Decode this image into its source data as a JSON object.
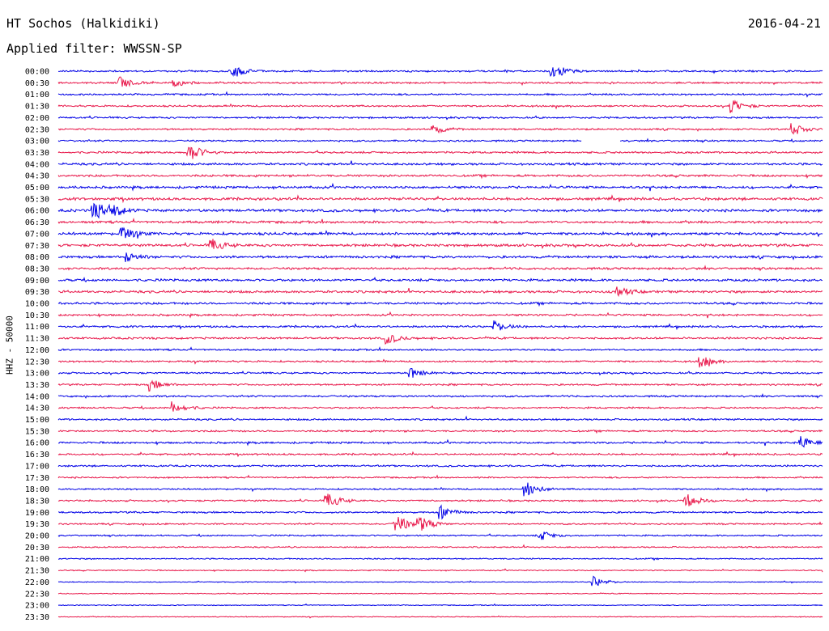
{
  "header": {
    "station": "HT Sochos (Halkidiki)",
    "date": "2016-04-21",
    "filter": "Applied filter: WWSSN-SP"
  },
  "chart_data": {
    "type": "line",
    "title": "HT Sochos (Halkidiki)",
    "subtitle": "Applied filter: WWSSN-SP",
    "ylabel": "HHZ - 50000",
    "xlabel": "",
    "row_labels": [
      "00:00",
      "00:30",
      "01:00",
      "01:30",
      "02:00",
      "02:30",
      "03:00",
      "03:30",
      "04:00",
      "04:30",
      "05:00",
      "05:30",
      "06:00",
      "06:30",
      "07:00",
      "07:30",
      "08:00",
      "08:30",
      "09:00",
      "09:30",
      "10:00",
      "10:30",
      "11:00",
      "11:30",
      "12:00",
      "12:30",
      "13:00",
      "13:30",
      "14:00",
      "14:30",
      "15:00",
      "15:30",
      "16:00",
      "16:30",
      "17:00",
      "17:30",
      "18:00",
      "18:30",
      "19:00",
      "19:30",
      "20:00",
      "20:30",
      "21:00",
      "21:30",
      "22:00",
      "22:30",
      "23:00",
      "23:30"
    ],
    "series_colors": [
      "#0000e6",
      "#e8174a"
    ],
    "row_amplitude": [
      0.4,
      0.4,
      0.4,
      0.4,
      0.4,
      0.4,
      0.4,
      0.45,
      0.5,
      0.5,
      0.55,
      0.6,
      0.6,
      0.55,
      0.6,
      0.6,
      0.55,
      0.5,
      0.55,
      0.55,
      0.5,
      0.45,
      0.45,
      0.45,
      0.4,
      0.4,
      0.4,
      0.4,
      0.4,
      0.4,
      0.4,
      0.4,
      0.45,
      0.4,
      0.4,
      0.35,
      0.35,
      0.4,
      0.4,
      0.35,
      0.35,
      0.3,
      0.3,
      0.25,
      0.2,
      0.2,
      0.2,
      0.2
    ],
    "events": [
      {
        "row": 0,
        "t": 0.225,
        "amp": 1.8
      },
      {
        "row": 0,
        "t": 0.645,
        "amp": 2.0
      },
      {
        "row": 1,
        "t": 0.08,
        "amp": 1.2
      },
      {
        "row": 1,
        "t": 0.15,
        "amp": 0.8
      },
      {
        "row": 3,
        "t": 0.88,
        "amp": 1.4
      },
      {
        "row": 5,
        "t": 0.49,
        "amp": 0.9
      },
      {
        "row": 5,
        "t": 0.96,
        "amp": 1.3
      },
      {
        "row": 7,
        "t": 0.17,
        "amp": 2.2
      },
      {
        "row": 12,
        "t": 0.045,
        "amp": 2.4
      },
      {
        "row": 12,
        "t": 0.065,
        "amp": 1.6
      },
      {
        "row": 14,
        "t": 0.082,
        "amp": 1.6
      },
      {
        "row": 15,
        "t": 0.2,
        "amp": 1.2
      },
      {
        "row": 16,
        "t": 0.09,
        "amp": 0.9
      },
      {
        "row": 19,
        "t": 0.73,
        "amp": 1.0
      },
      {
        "row": 22,
        "t": 0.57,
        "amp": 1.1
      },
      {
        "row": 23,
        "t": 0.43,
        "amp": 1.1
      },
      {
        "row": 25,
        "t": 0.84,
        "amp": 1.2
      },
      {
        "row": 26,
        "t": 0.46,
        "amp": 1.0
      },
      {
        "row": 27,
        "t": 0.12,
        "amp": 1.1
      },
      {
        "row": 29,
        "t": 0.15,
        "amp": 1.1
      },
      {
        "row": 32,
        "t": 0.97,
        "amp": 1.3
      },
      {
        "row": 36,
        "t": 0.61,
        "amp": 1.8
      },
      {
        "row": 37,
        "t": 0.35,
        "amp": 1.8
      },
      {
        "row": 37,
        "t": 0.82,
        "amp": 1.6
      },
      {
        "row": 38,
        "t": 0.5,
        "amp": 1.3
      },
      {
        "row": 39,
        "t": 0.44,
        "amp": 2.2
      },
      {
        "row": 39,
        "t": 0.47,
        "amp": 2.2
      },
      {
        "row": 40,
        "t": 0.63,
        "amp": 1.0
      },
      {
        "row": 44,
        "t": 0.7,
        "amp": 1.0
      }
    ],
    "gaps": [
      {
        "row": 6,
        "t_start": 0.685,
        "t_end": 0.735
      }
    ]
  }
}
